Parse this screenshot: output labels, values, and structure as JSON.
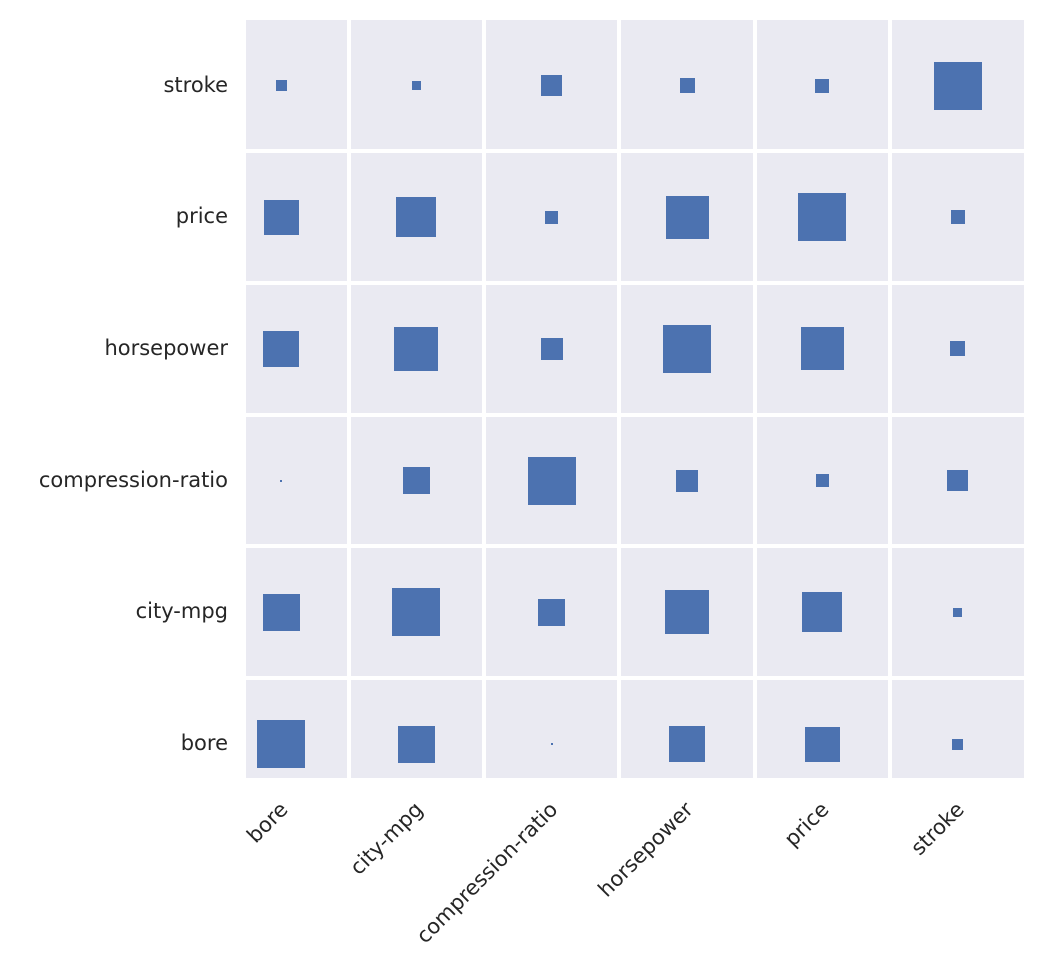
{
  "figure": {
    "background_color": "#FFFFFF",
    "axes_background_color": "#EAEAF2",
    "gridline_color": "#FFFFFF",
    "marker_color": "#4C72B0",
    "tick_label_color": "#262626"
  },
  "chart_data": {
    "type": "heatmap",
    "subtype": "correlation-matrix-size-encoded-squares",
    "title": "",
    "xlabel": "",
    "ylabel": "",
    "x_categories": [
      "bore",
      "city-mpg",
      "compression-ratio",
      "horsepower",
      "price",
      "stroke"
    ],
    "y_categories": [
      "stroke",
      "price",
      "horsepower",
      "compression-ratio",
      "city-mpg",
      "bore"
    ],
    "value_name": "correlation",
    "values": [
      [
        -0.055,
        -0.034,
        0.187,
        0.098,
        0.082,
        1.0
      ],
      [
        0.543,
        -0.687,
        0.071,
        0.81,
        1.0,
        0.082
      ],
      [
        0.566,
        -0.822,
        -0.215,
        1.0,
        0.81,
        0.098
      ],
      [
        0.001,
        0.325,
        1.0,
        -0.215,
        0.071,
        0.187
      ],
      [
        -0.583,
        1.0,
        0.325,
        -0.822,
        -0.687,
        -0.034
      ],
      [
        1.0,
        -0.583,
        0.001,
        0.566,
        0.543,
        -0.055
      ]
    ],
    "size_encoding": "square side = 48px * sqrt(abs(correlation))",
    "grid": true,
    "legend": "none",
    "x_tick_rotation_deg": 45
  }
}
